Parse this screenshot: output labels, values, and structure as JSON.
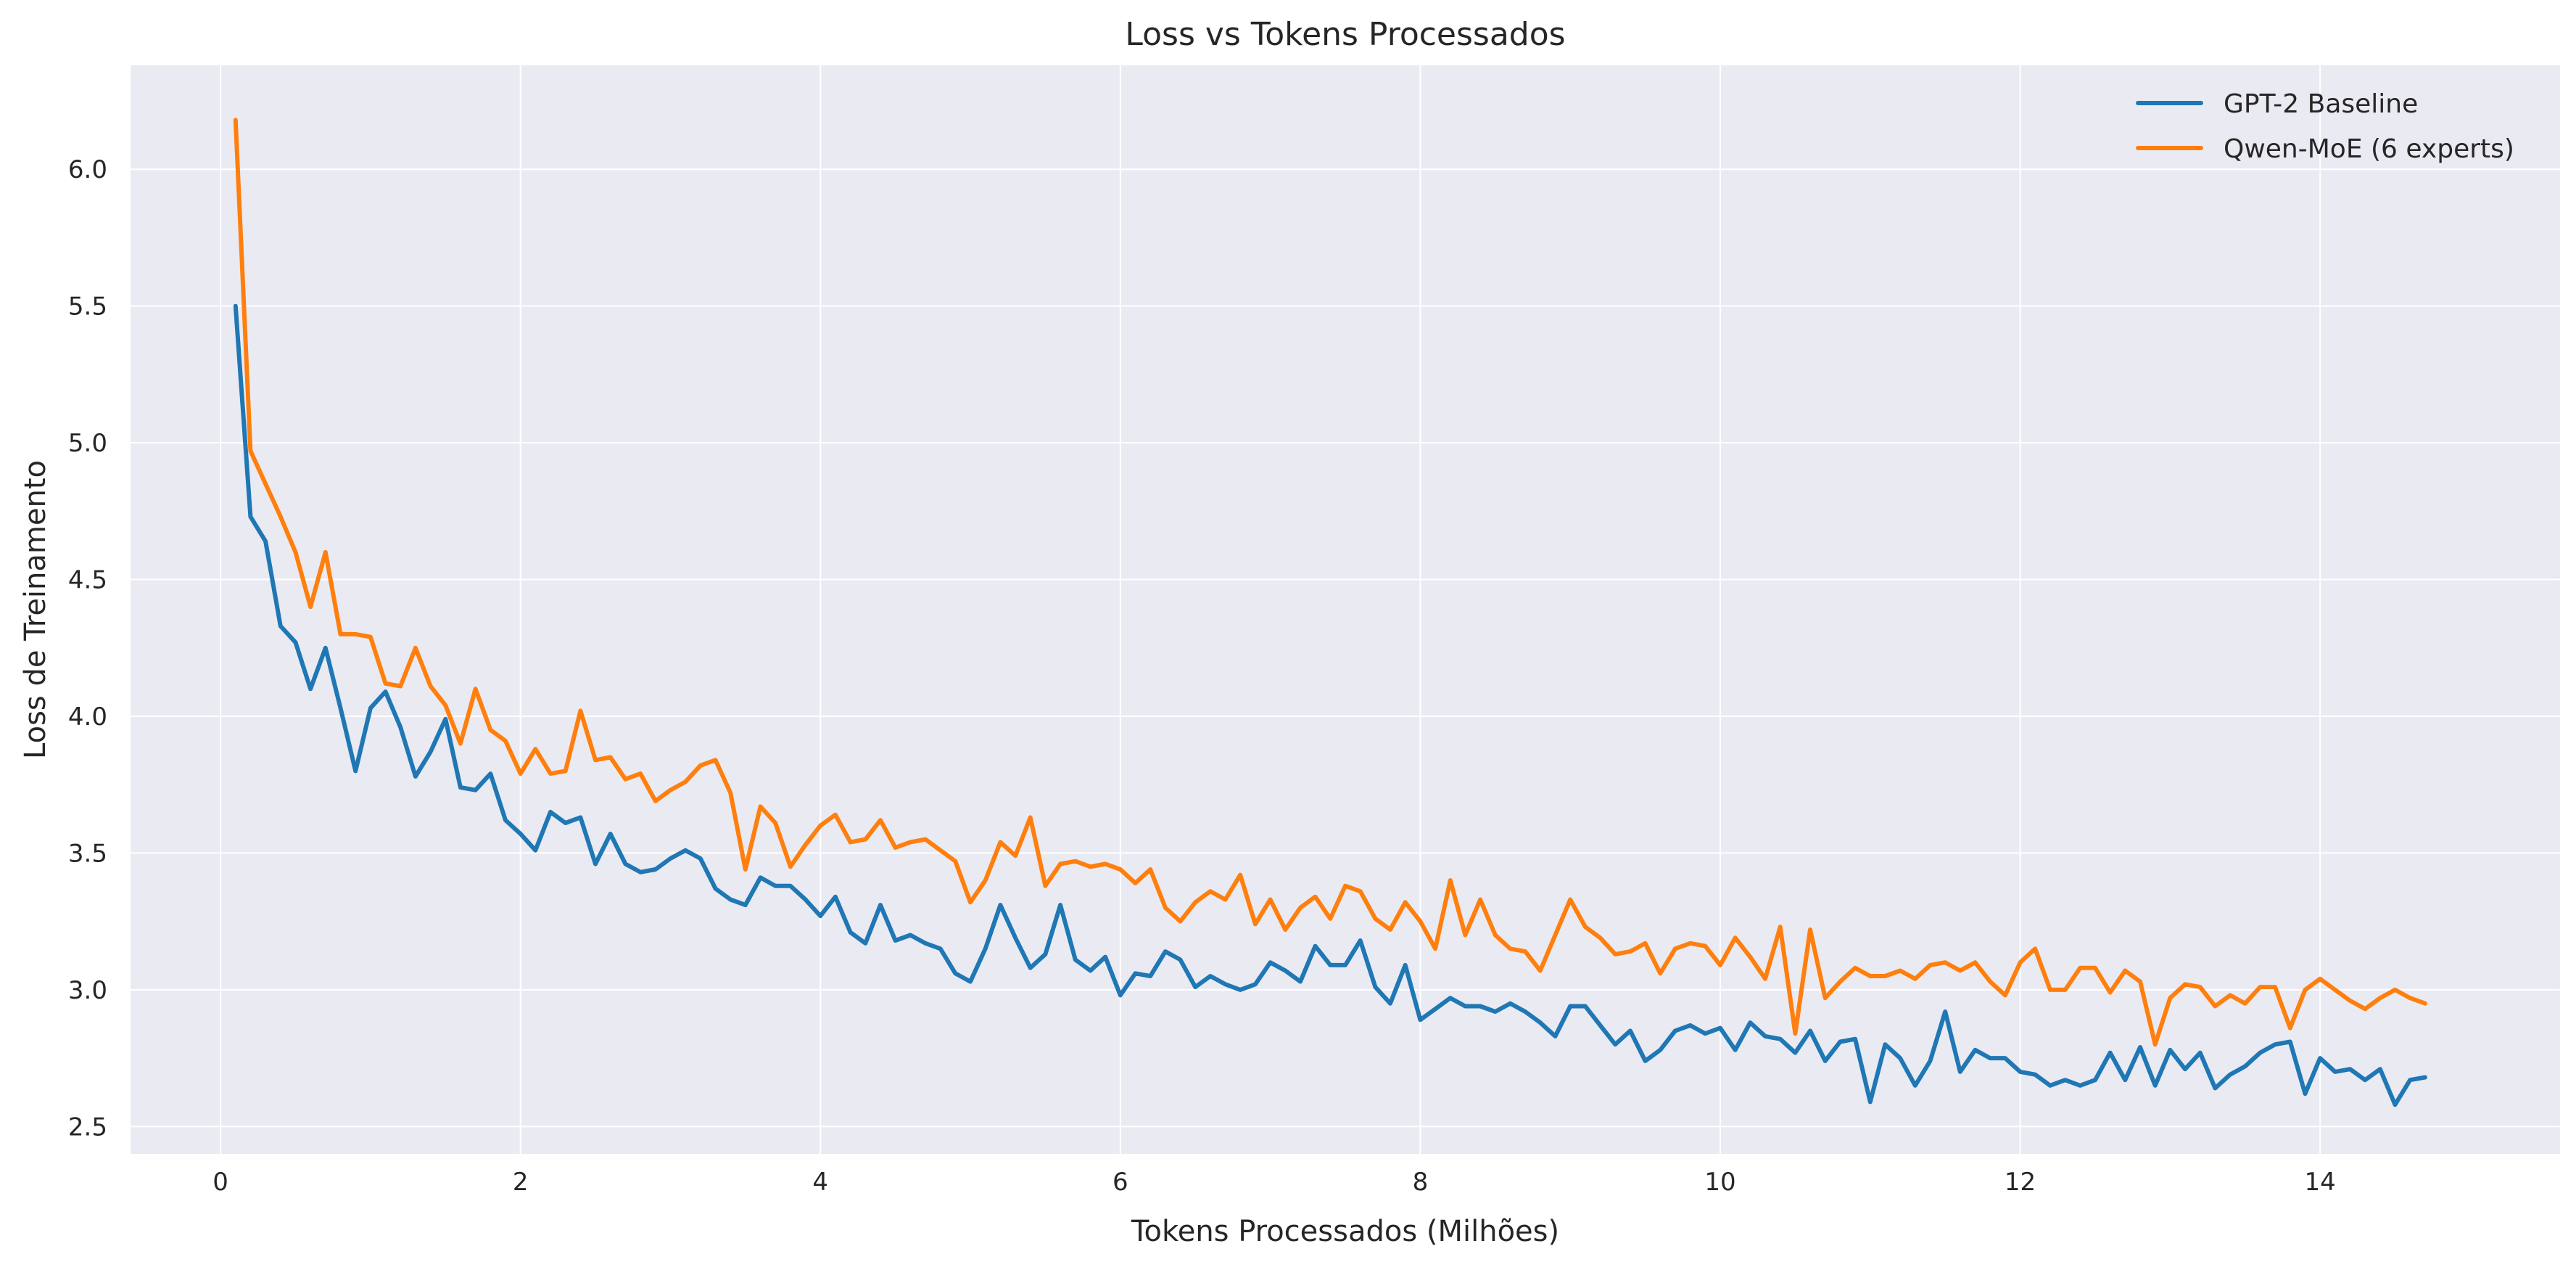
{
  "chart_data": {
    "type": "line",
    "title": "Loss vs Tokens Processados",
    "xlabel": "Tokens Processados (Milhões)",
    "ylabel": "Loss de Treinamento",
    "xlim": [
      -0.6,
      15.6
    ],
    "ylim": [
      2.4,
      6.38
    ],
    "xticks": [
      0,
      2,
      4,
      6,
      8,
      10,
      12,
      14
    ],
    "yticks": [
      2.5,
      3.0,
      3.5,
      4.0,
      4.5,
      5.0,
      5.5,
      6.0
    ],
    "xtick_labels": [
      "0",
      "2",
      "4",
      "6",
      "8",
      "10",
      "12",
      "14"
    ],
    "ytick_labels": [
      "2.5",
      "3.0",
      "3.5",
      "4.0",
      "4.5",
      "5.0",
      "5.5",
      "6.0"
    ],
    "grid": true,
    "legend": "top-right",
    "series": [
      {
        "name": "GPT-2 Baseline",
        "color": "#1f77b4",
        "points": [
          [
            0.1,
            5.5
          ],
          [
            0.2,
            4.73
          ],
          [
            0.3,
            4.64
          ],
          [
            0.4,
            4.33
          ],
          [
            0.5,
            4.27
          ],
          [
            0.6,
            4.1
          ],
          [
            0.7,
            4.25
          ],
          [
            0.8,
            4.03
          ],
          [
            0.9,
            3.8
          ],
          [
            1.0,
            4.03
          ],
          [
            1.1,
            4.09
          ],
          [
            1.2,
            3.96
          ],
          [
            1.3,
            3.78
          ],
          [
            1.4,
            3.87
          ],
          [
            1.5,
            3.99
          ],
          [
            1.6,
            3.74
          ],
          [
            1.7,
            3.73
          ],
          [
            1.8,
            3.79
          ],
          [
            1.9,
            3.62
          ],
          [
            2.0,
            3.57
          ],
          [
            2.1,
            3.51
          ],
          [
            2.2,
            3.65
          ],
          [
            2.3,
            3.61
          ],
          [
            2.4,
            3.63
          ],
          [
            2.5,
            3.46
          ],
          [
            2.6,
            3.57
          ],
          [
            2.7,
            3.46
          ],
          [
            2.8,
            3.43
          ],
          [
            2.9,
            3.44
          ],
          [
            3.0,
            3.48
          ],
          [
            3.1,
            3.51
          ],
          [
            3.2,
            3.48
          ],
          [
            3.3,
            3.37
          ],
          [
            3.4,
            3.33
          ],
          [
            3.5,
            3.31
          ],
          [
            3.6,
            3.41
          ],
          [
            3.7,
            3.38
          ],
          [
            3.8,
            3.38
          ],
          [
            3.9,
            3.33
          ],
          [
            4.0,
            3.27
          ],
          [
            4.1,
            3.34
          ],
          [
            4.2,
            3.21
          ],
          [
            4.3,
            3.17
          ],
          [
            4.4,
            3.31
          ],
          [
            4.5,
            3.18
          ],
          [
            4.6,
            3.2
          ],
          [
            4.7,
            3.17
          ],
          [
            4.8,
            3.15
          ],
          [
            4.9,
            3.06
          ],
          [
            5.0,
            3.03
          ],
          [
            5.1,
            3.15
          ],
          [
            5.2,
            3.31
          ],
          [
            5.3,
            3.19
          ],
          [
            5.4,
            3.08
          ],
          [
            5.5,
            3.13
          ],
          [
            5.6,
            3.31
          ],
          [
            5.7,
            3.11
          ],
          [
            5.8,
            3.07
          ],
          [
            5.9,
            3.12
          ],
          [
            6.0,
            2.98
          ],
          [
            6.1,
            3.06
          ],
          [
            6.2,
            3.05
          ],
          [
            6.3,
            3.14
          ],
          [
            6.4,
            3.11
          ],
          [
            6.5,
            3.01
          ],
          [
            6.6,
            3.05
          ],
          [
            6.7,
            3.02
          ],
          [
            6.8,
            3.0
          ],
          [
            6.9,
            3.02
          ],
          [
            7.0,
            3.1
          ],
          [
            7.1,
            3.07
          ],
          [
            7.2,
            3.03
          ],
          [
            7.3,
            3.16
          ],
          [
            7.4,
            3.09
          ],
          [
            7.5,
            3.09
          ],
          [
            7.6,
            3.18
          ],
          [
            7.7,
            3.01
          ],
          [
            7.8,
            2.95
          ],
          [
            7.9,
            3.09
          ],
          [
            8.0,
            2.89
          ],
          [
            8.1,
            2.93
          ],
          [
            8.2,
            2.97
          ],
          [
            8.3,
            2.94
          ],
          [
            8.4,
            2.94
          ],
          [
            8.5,
            2.92
          ],
          [
            8.6,
            2.95
          ],
          [
            8.7,
            2.92
          ],
          [
            8.8,
            2.88
          ],
          [
            8.9,
            2.83
          ],
          [
            9.0,
            2.94
          ],
          [
            9.1,
            2.94
          ],
          [
            9.2,
            2.87
          ],
          [
            9.3,
            2.8
          ],
          [
            9.4,
            2.85
          ],
          [
            9.5,
            2.74
          ],
          [
            9.6,
            2.78
          ],
          [
            9.7,
            2.85
          ],
          [
            9.8,
            2.87
          ],
          [
            9.9,
            2.84
          ],
          [
            10.0,
            2.86
          ],
          [
            10.1,
            2.78
          ],
          [
            10.2,
            2.88
          ],
          [
            10.3,
            2.83
          ],
          [
            10.4,
            2.82
          ],
          [
            10.5,
            2.77
          ],
          [
            10.6,
            2.85
          ],
          [
            10.7,
            2.74
          ],
          [
            10.8,
            2.81
          ],
          [
            10.9,
            2.82
          ],
          [
            11.0,
            2.59
          ],
          [
            11.1,
            2.8
          ],
          [
            11.2,
            2.75
          ],
          [
            11.3,
            2.65
          ],
          [
            11.4,
            2.74
          ],
          [
            11.5,
            2.92
          ],
          [
            11.6,
            2.7
          ],
          [
            11.7,
            2.78
          ],
          [
            11.8,
            2.75
          ],
          [
            11.9,
            2.75
          ],
          [
            12.0,
            2.7
          ],
          [
            12.1,
            2.69
          ],
          [
            12.2,
            2.65
          ],
          [
            12.3,
            2.67
          ],
          [
            12.4,
            2.65
          ],
          [
            12.5,
            2.67
          ],
          [
            12.6,
            2.77
          ],
          [
            12.7,
            2.67
          ],
          [
            12.8,
            2.79
          ],
          [
            12.9,
            2.65
          ],
          [
            13.0,
            2.78
          ],
          [
            13.1,
            2.71
          ],
          [
            13.2,
            2.77
          ],
          [
            13.3,
            2.64
          ],
          [
            13.4,
            2.69
          ],
          [
            13.5,
            2.72
          ],
          [
            13.6,
            2.77
          ],
          [
            13.7,
            2.8
          ],
          [
            13.8,
            2.81
          ],
          [
            13.9,
            2.62
          ],
          [
            14.0,
            2.75
          ],
          [
            14.1,
            2.7
          ],
          [
            14.2,
            2.71
          ],
          [
            14.3,
            2.67
          ],
          [
            14.4,
            2.71
          ],
          [
            14.5,
            2.58
          ],
          [
            14.6,
            2.67
          ],
          [
            14.7,
            2.68
          ]
        ]
      },
      {
        "name": "Qwen-MoE (6 experts)",
        "color": "#ff7f0e",
        "points": [
          [
            0.1,
            6.18
          ],
          [
            0.2,
            4.97
          ],
          [
            0.3,
            4.85
          ],
          [
            0.4,
            4.73
          ],
          [
            0.5,
            4.6
          ],
          [
            0.6,
            4.4
          ],
          [
            0.7,
            4.6
          ],
          [
            0.8,
            4.3
          ],
          [
            0.9,
            4.3
          ],
          [
            1.0,
            4.29
          ],
          [
            1.1,
            4.12
          ],
          [
            1.2,
            4.11
          ],
          [
            1.3,
            4.25
          ],
          [
            1.4,
            4.11
          ],
          [
            1.5,
            4.04
          ],
          [
            1.6,
            3.9
          ],
          [
            1.7,
            4.1
          ],
          [
            1.8,
            3.95
          ],
          [
            1.9,
            3.91
          ],
          [
            2.0,
            3.79
          ],
          [
            2.1,
            3.88
          ],
          [
            2.2,
            3.79
          ],
          [
            2.3,
            3.8
          ],
          [
            2.4,
            4.02
          ],
          [
            2.5,
            3.84
          ],
          [
            2.6,
            3.85
          ],
          [
            2.7,
            3.77
          ],
          [
            2.8,
            3.79
          ],
          [
            2.9,
            3.69
          ],
          [
            3.0,
            3.73
          ],
          [
            3.1,
            3.76
          ],
          [
            3.2,
            3.82
          ],
          [
            3.3,
            3.84
          ],
          [
            3.4,
            3.72
          ],
          [
            3.5,
            3.44
          ],
          [
            3.6,
            3.67
          ],
          [
            3.7,
            3.61
          ],
          [
            3.8,
            3.45
          ],
          [
            3.9,
            3.53
          ],
          [
            4.0,
            3.6
          ],
          [
            4.1,
            3.64
          ],
          [
            4.2,
            3.54
          ],
          [
            4.3,
            3.55
          ],
          [
            4.4,
            3.62
          ],
          [
            4.5,
            3.52
          ],
          [
            4.6,
            3.54
          ],
          [
            4.7,
            3.55
          ],
          [
            4.8,
            3.51
          ],
          [
            4.9,
            3.47
          ],
          [
            5.0,
            3.32
          ],
          [
            5.1,
            3.4
          ],
          [
            5.2,
            3.54
          ],
          [
            5.3,
            3.49
          ],
          [
            5.4,
            3.63
          ],
          [
            5.5,
            3.38
          ],
          [
            5.6,
            3.46
          ],
          [
            5.7,
            3.47
          ],
          [
            5.8,
            3.45
          ],
          [
            5.9,
            3.46
          ],
          [
            6.0,
            3.44
          ],
          [
            6.1,
            3.39
          ],
          [
            6.2,
            3.44
          ],
          [
            6.3,
            3.3
          ],
          [
            6.4,
            3.25
          ],
          [
            6.5,
            3.32
          ],
          [
            6.6,
            3.36
          ],
          [
            6.7,
            3.33
          ],
          [
            6.8,
            3.42
          ],
          [
            6.9,
            3.24
          ],
          [
            7.0,
            3.33
          ],
          [
            7.1,
            3.22
          ],
          [
            7.2,
            3.3
          ],
          [
            7.3,
            3.34
          ],
          [
            7.4,
            3.26
          ],
          [
            7.5,
            3.38
          ],
          [
            7.6,
            3.36
          ],
          [
            7.7,
            3.26
          ],
          [
            7.8,
            3.22
          ],
          [
            7.9,
            3.32
          ],
          [
            8.0,
            3.25
          ],
          [
            8.1,
            3.15
          ],
          [
            8.2,
            3.4
          ],
          [
            8.3,
            3.2
          ],
          [
            8.4,
            3.33
          ],
          [
            8.5,
            3.2
          ],
          [
            8.6,
            3.15
          ],
          [
            8.7,
            3.14
          ],
          [
            8.8,
            3.07
          ],
          [
            8.9,
            3.2
          ],
          [
            9.0,
            3.33
          ],
          [
            9.1,
            3.23
          ],
          [
            9.2,
            3.19
          ],
          [
            9.3,
            3.13
          ],
          [
            9.4,
            3.14
          ],
          [
            9.5,
            3.17
          ],
          [
            9.6,
            3.06
          ],
          [
            9.7,
            3.15
          ],
          [
            9.8,
            3.17
          ],
          [
            9.9,
            3.16
          ],
          [
            10.0,
            3.09
          ],
          [
            10.1,
            3.19
          ],
          [
            10.2,
            3.12
          ],
          [
            10.3,
            3.04
          ],
          [
            10.4,
            3.23
          ],
          [
            10.5,
            2.84
          ],
          [
            10.6,
            3.22
          ],
          [
            10.7,
            2.97
          ],
          [
            10.8,
            3.03
          ],
          [
            10.9,
            3.08
          ],
          [
            11.0,
            3.05
          ],
          [
            11.1,
            3.05
          ],
          [
            11.2,
            3.07
          ],
          [
            11.3,
            3.04
          ],
          [
            11.4,
            3.09
          ],
          [
            11.5,
            3.1
          ],
          [
            11.6,
            3.07
          ],
          [
            11.7,
            3.1
          ],
          [
            11.8,
            3.03
          ],
          [
            11.9,
            2.98
          ],
          [
            12.0,
            3.1
          ],
          [
            12.1,
            3.15
          ],
          [
            12.2,
            3.0
          ],
          [
            12.3,
            3.0
          ],
          [
            12.4,
            3.08
          ],
          [
            12.5,
            3.08
          ],
          [
            12.6,
            2.99
          ],
          [
            12.7,
            3.07
          ],
          [
            12.8,
            3.03
          ],
          [
            12.9,
            2.8
          ],
          [
            13.0,
            2.97
          ],
          [
            13.1,
            3.02
          ],
          [
            13.2,
            3.01
          ],
          [
            13.3,
            2.94
          ],
          [
            13.4,
            2.98
          ],
          [
            13.5,
            2.95
          ],
          [
            13.6,
            3.01
          ],
          [
            13.7,
            3.01
          ],
          [
            13.8,
            2.86
          ],
          [
            13.9,
            3.0
          ],
          [
            14.0,
            3.04
          ],
          [
            14.1,
            3.0
          ],
          [
            14.2,
            2.96
          ],
          [
            14.3,
            2.93
          ],
          [
            14.4,
            2.97
          ],
          [
            14.5,
            3.0
          ],
          [
            14.6,
            2.97
          ],
          [
            14.7,
            2.95
          ]
        ]
      }
    ]
  }
}
